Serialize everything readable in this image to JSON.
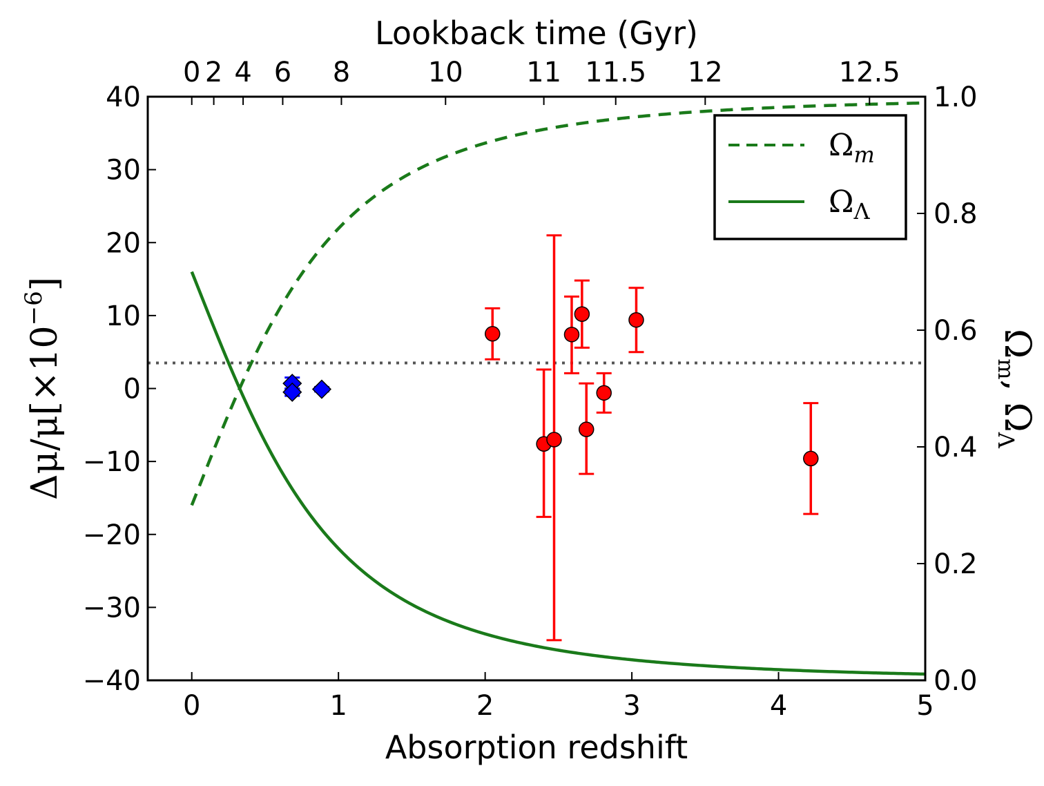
{
  "chart_data": {
    "type": "scatter",
    "xlabel": "Absorption redshift",
    "ylabel": "Δμ/μ[×10",
    "ylabel_exp": "−6",
    "ylabel_close": "]",
    "y2label": "Ω",
    "y2label_sub": "m",
    "y2label_mid": ", Ω",
    "y2label_sub2": "Λ",
    "top_xlabel": "Lookback time (Gyr)",
    "xlim": [
      -0.3,
      5
    ],
    "ylim": [
      -40,
      40
    ],
    "y2lim": [
      0.0,
      1.0
    ],
    "grid": false,
    "legend_position": "top-right",
    "x_ticks": [
      0,
      1,
      2,
      3,
      4,
      5
    ],
    "x_tick_labels": [
      "0",
      "1",
      "2",
      "3",
      "4",
      "5"
    ],
    "y_ticks": [
      -40,
      -30,
      -20,
      -10,
      0,
      10,
      20,
      30,
      40
    ],
    "y_tick_labels": [
      "−40",
      "−30",
      "−20",
      "−10",
      "0",
      "10",
      "20",
      "30",
      "40"
    ],
    "y2_ticks": [
      0.0,
      0.2,
      0.4,
      0.6,
      0.8,
      1.0
    ],
    "y2_tick_labels": [
      "0.0",
      "0.2",
      "0.4",
      "0.6",
      "0.8",
      "1.0"
    ],
    "top_ticks": [
      {
        "label": "0",
        "z": 0.0
      },
      {
        "label": "2",
        "z": 0.15
      },
      {
        "label": "4",
        "z": 0.35
      },
      {
        "label": "6",
        "z": 0.62
      },
      {
        "label": "8",
        "z": 1.02
      },
      {
        "label": "10",
        "z": 1.73
      },
      {
        "label": "11",
        "z": 2.4
      },
      {
        "label": "11.5",
        "z": 2.89
      },
      {
        "label": "12",
        "z": 3.5
      },
      {
        "label": "12.5",
        "z": 4.62
      }
    ],
    "reference_line": {
      "y": 3.5,
      "style": "dotted",
      "color": "#555555"
    },
    "series": [
      {
        "name": "",
        "marker": "circle",
        "color": "#ff0000",
        "points": [
          {
            "x": 2.05,
            "y": 7.5,
            "yerr_low": 3.5,
            "yerr_high": 3.5
          },
          {
            "x": 2.4,
            "y": -7.6,
            "yerr_low": 10.0,
            "yerr_high": 10.2
          },
          {
            "x": 2.47,
            "y": -7.0,
            "yerr_low": 27.5,
            "yerr_high": 28.0
          },
          {
            "x": 2.59,
            "y": 7.4,
            "yerr_low": 5.3,
            "yerr_high": 5.2
          },
          {
            "x": 2.66,
            "y": 10.2,
            "yerr_low": 4.6,
            "yerr_high": 4.6
          },
          {
            "x": 2.69,
            "y": -5.6,
            "yerr_low": 6.1,
            "yerr_high": 6.3
          },
          {
            "x": 2.81,
            "y": -0.6,
            "yerr_low": 2.7,
            "yerr_high": 2.7
          },
          {
            "x": 3.03,
            "y": 9.4,
            "yerr_low": 4.4,
            "yerr_high": 4.4
          },
          {
            "x": 4.22,
            "y": -9.6,
            "yerr_low": 7.6,
            "yerr_high": 7.6
          }
        ]
      },
      {
        "name": "",
        "marker": "diamond",
        "color": "#0000ff",
        "points": [
          {
            "x": 0.685,
            "y": 0.7,
            "yerr_low": 0.8,
            "yerr_high": 0.8
          },
          {
            "x": 0.685,
            "y": -0.5,
            "yerr_low": 0.5,
            "yerr_high": 0.5
          },
          {
            "x": 0.886,
            "y": -0.1,
            "yerr_low": 0.3,
            "yerr_high": 0.3
          }
        ]
      }
    ],
    "curves": [
      {
        "name": "Ω",
        "sub": "m",
        "style": "dashed",
        "color": "#1a7a1a",
        "axis": "right",
        "formula": "Omega_m(z), Omega_m0 = 0.3"
      },
      {
        "name": "Ω",
        "sub": "Λ",
        "style": "solid",
        "color": "#1a7a1a",
        "axis": "right",
        "formula": "Omega_L(z), Omega_L0 = 0.7"
      }
    ]
  }
}
